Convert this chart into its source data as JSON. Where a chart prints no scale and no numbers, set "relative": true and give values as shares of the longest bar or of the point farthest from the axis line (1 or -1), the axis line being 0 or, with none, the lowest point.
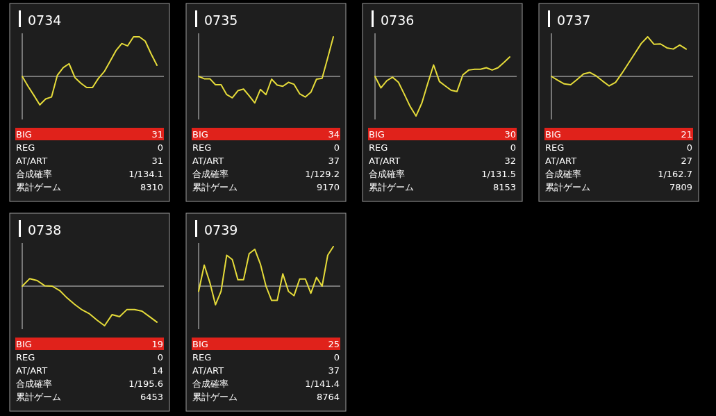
{
  "chart_data": [
    {
      "type": "line",
      "title": "0734",
      "relative": true,
      "categories": [
        null,
        null,
        null,
        null,
        null,
        null,
        null,
        null,
        null,
        null,
        null,
        null,
        null,
        null,
        null,
        null,
        null,
        null,
        null,
        null,
        null,
        null,
        null,
        null
      ],
      "series": [
        {
          "color": "#e6dc3a",
          "values": [
            0,
            -0.25,
            -0.48,
            -0.72,
            -0.57,
            -0.52,
            0.03,
            0.22,
            0.32,
            -0.03,
            -0.17,
            -0.28,
            -0.28,
            -0.05,
            0.12,
            0.38,
            0.65,
            0.83,
            0.77,
            1,
            1,
            0.89,
            0.57,
            0.28
          ]
        }
      ],
      "annotations": [
        "BIG",
        "31",
        "REG",
        "0",
        "AT/ART",
        "31",
        "合成確率",
        "1/134.1",
        "累計ゲーム",
        "8310"
      ]
    },
    {
      "type": "line",
      "title": "0735",
      "relative": true,
      "categories": [
        null,
        null,
        null,
        null,
        null,
        null,
        null,
        null,
        null,
        null,
        null,
        null,
        null,
        null,
        null,
        null,
        null,
        null,
        null,
        null,
        null,
        null,
        null,
        null,
        null
      ],
      "series": [
        {
          "color": "#e6dc3a",
          "values": [
            0,
            -0.06,
            -0.06,
            -0.21,
            -0.21,
            -0.46,
            -0.54,
            -0.36,
            -0.32,
            -0.49,
            -0.67,
            -0.33,
            -0.46,
            -0.07,
            -0.22,
            -0.25,
            -0.15,
            -0.2,
            -0.44,
            -0.52,
            -0.4,
            -0.07,
            -0.05,
            0.47,
            1
          ]
        }
      ],
      "annotations": [
        "BIG",
        "34",
        "REG",
        "0",
        "AT/ART",
        "37",
        "合成確率",
        "1/129.2",
        "累計ゲーム",
        "9170"
      ]
    },
    {
      "type": "line",
      "title": "0736",
      "relative": true,
      "categories": [
        null,
        null,
        null,
        null,
        null,
        null,
        null,
        null,
        null,
        null,
        null,
        null,
        null,
        null,
        null,
        null,
        null,
        null,
        null,
        null,
        null,
        null,
        null,
        null
      ],
      "series": [
        {
          "color": "#e6dc3a",
          "values": [
            0,
            -0.29,
            -0.11,
            -0.02,
            -0.15,
            -0.45,
            -0.76,
            -1,
            -0.67,
            -0.18,
            0.29,
            -0.13,
            -0.24,
            -0.35,
            -0.38,
            0.04,
            0.16,
            0.18,
            0.18,
            0.22,
            0.16,
            0.22,
            0.35,
            0.49
          ]
        }
      ],
      "annotations": [
        "BIG",
        "30",
        "REG",
        "0",
        "AT/ART",
        "32",
        "合成確率",
        "1/131.5",
        "累計ゲーム",
        "8153"
      ]
    },
    {
      "type": "line",
      "title": "0737",
      "relative": true,
      "categories": [
        null,
        null,
        null,
        null,
        null,
        null,
        null,
        null,
        null,
        null,
        null,
        null,
        null,
        null,
        null,
        null,
        null,
        null,
        null,
        null,
        null,
        null
      ],
      "series": [
        {
          "color": "#e6dc3a",
          "values": [
            0,
            -0.1,
            -0.19,
            -0.21,
            -0.08,
            0.06,
            0.1,
            0.01,
            -0.12,
            -0.24,
            -0.15,
            0.08,
            0.33,
            0.58,
            0.83,
            1,
            0.81,
            0.82,
            0.72,
            0.69,
            0.79,
            0.69
          ]
        }
      ],
      "annotations": [
        "BIG",
        "21",
        "REG",
        "0",
        "AT/ART",
        "27",
        "合成確率",
        "1/162.7",
        "累計ゲーム",
        "7809"
      ]
    },
    {
      "type": "line",
      "title": "0738",
      "relative": true,
      "categories": [
        null,
        null,
        null,
        null,
        null,
        null,
        null,
        null,
        null,
        null,
        null,
        null,
        null,
        null,
        null,
        null,
        null,
        null,
        null
      ],
      "series": [
        {
          "color": "#e6dc3a",
          "values": [
            0,
            0.19,
            0.14,
            0.01,
            0,
            -0.11,
            -0.3,
            -0.46,
            -0.6,
            -0.7,
            -0.86,
            -1,
            -0.72,
            -0.77,
            -0.59,
            -0.59,
            -0.63,
            -0.77,
            -0.91
          ]
        }
      ],
      "annotations": [
        "BIG",
        "19",
        "REG",
        "0",
        "AT/ART",
        "14",
        "合成確率",
        "1/195.6",
        "累計ゲーム",
        "6453"
      ]
    },
    {
      "type": "line",
      "title": "0739",
      "relative": true,
      "categories": [
        null,
        null,
        null,
        null,
        null,
        null,
        null,
        null,
        null,
        null,
        null,
        null,
        null,
        null,
        null,
        null,
        null,
        null,
        null,
        null,
        null,
        null,
        null,
        null,
        null
      ],
      "series": [
        {
          "color": "#e6dc3a",
          "values": [
            -0.13,
            0.53,
            0.09,
            -0.47,
            -0.13,
            0.78,
            0.67,
            0.16,
            0.16,
            0.82,
            0.93,
            0.56,
            0,
            -0.36,
            -0.36,
            0.31,
            -0.13,
            -0.24,
            0.18,
            0.18,
            -0.18,
            0.22,
            0,
            0.78,
            1
          ]
        }
      ],
      "annotations": [
        "BIG",
        "25",
        "REG",
        "0",
        "AT/ART",
        "37",
        "合成確率",
        "1/141.4",
        "累計ゲーム",
        "8764"
      ]
    }
  ]
}
